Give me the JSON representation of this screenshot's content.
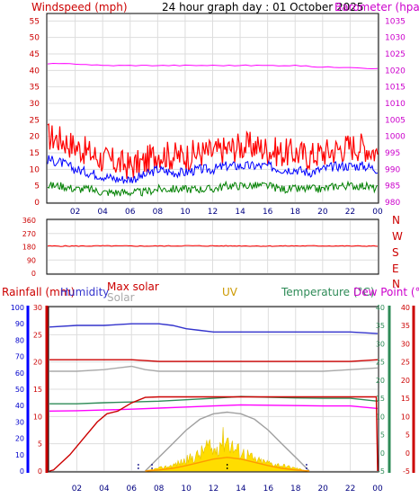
{
  "page": {
    "title": "24 hour graph day : 01 October 2025"
  },
  "chart_data": [
    {
      "type": "line",
      "title": "24 hour graph day : 01 October 2025",
      "left_label": "Windspeed (mph)",
      "right_label": "Barometer (hpa)",
      "x_ticks": [
        "02",
        "04",
        "06",
        "08",
        "10",
        "12",
        "14",
        "16",
        "18",
        "20",
        "22",
        "00"
      ],
      "left_ticks": [
        0,
        5,
        10,
        15,
        20,
        25,
        30,
        35,
        40,
        45,
        50,
        55
      ],
      "right_ticks": [
        980,
        985,
        990,
        995,
        1000,
        1005,
        1010,
        1015,
        1020,
        1025,
        1030,
        1035
      ],
      "ylim_left": [
        0,
        57
      ],
      "ylim_right": [
        980,
        1037
      ],
      "grid": true,
      "series": [
        {
          "color": "#ff0000",
          "axis": "left",
          "x": [
            0,
            1,
            2,
            3,
            4,
            5,
            6,
            7,
            8,
            9,
            10,
            11,
            12,
            13,
            14,
            15,
            16,
            17,
            18,
            19,
            20,
            21,
            22,
            23,
            24
          ],
          "values": [
            20,
            19,
            17,
            15,
            13,
            12,
            11,
            12,
            15,
            14,
            14,
            15,
            15,
            16,
            17,
            17,
            16,
            15,
            15,
            14,
            15,
            16,
            17,
            17,
            15
          ]
        },
        {
          "color": "#0000ff",
          "axis": "left",
          "x": [
            0,
            1,
            2,
            3,
            4,
            5,
            6,
            7,
            8,
            9,
            10,
            11,
            12,
            13,
            14,
            15,
            16,
            17,
            18,
            19,
            20,
            21,
            22,
            23,
            24
          ],
          "values": [
            13,
            12,
            10,
            9,
            8,
            7,
            7,
            8,
            10,
            9,
            9,
            10,
            10,
            11,
            11,
            11,
            11,
            10,
            10,
            9,
            10,
            11,
            11,
            11,
            10
          ]
        },
        {
          "color": "#008000",
          "axis": "left",
          "x": [
            0,
            1,
            2,
            3,
            4,
            5,
            6,
            7,
            8,
            9,
            10,
            11,
            12,
            13,
            14,
            15,
            16,
            17,
            18,
            19,
            20,
            21,
            22,
            23,
            24
          ],
          "values": [
            5,
            5,
            4,
            4,
            3,
            3,
            3,
            3,
            4,
            4,
            4,
            4,
            4,
            5,
            5,
            5,
            5,
            4,
            4,
            4,
            4,
            5,
            5,
            5,
            4
          ]
        },
        {
          "color": "#ff00ff",
          "axis": "right",
          "x": [
            0,
            2,
            4,
            6,
            8,
            10,
            12,
            14,
            16,
            18,
            20,
            22,
            24
          ],
          "values": [
            1022,
            1022,
            1021.5,
            1021.5,
            1021.5,
            1021.5,
            1021.5,
            1021.5,
            1021.5,
            1021.5,
            1021,
            1021,
            1020.5
          ]
        }
      ]
    },
    {
      "type": "line",
      "left_ticks": [
        0,
        90,
        180,
        270,
        360
      ],
      "right_ticks": [
        "N",
        "W",
        "S",
        "E",
        "N"
      ],
      "x_ticks": [],
      "ylim": [
        0,
        360
      ],
      "grid": true,
      "series": [
        {
          "color": "#ff0000",
          "x": [
            0,
            2,
            4,
            6,
            8,
            10,
            12,
            14,
            16,
            18,
            20,
            22,
            24
          ],
          "values": [
            185,
            185,
            186,
            185,
            185,
            187,
            186,
            186,
            185,
            186,
            186,
            185,
            185
          ]
        }
      ]
    },
    {
      "type": "line",
      "header_labels": {
        "rainfall": "Rainfall (mm)",
        "humidity": "Humidity",
        "max_solar": "Max solar",
        "solar": "Solar",
        "uv": "UV",
        "temperature": "Temperature (°C)",
        "dew_point": "Dew Point (°C)"
      },
      "x_ticks": [
        "02",
        "04",
        "06",
        "08",
        "10",
        "12",
        "14",
        "16",
        "18",
        "20",
        "22",
        "00"
      ],
      "axes": {
        "humidity": {
          "ticks": [
            0,
            10,
            20,
            30,
            40,
            50,
            60,
            70,
            80,
            90,
            100
          ],
          "range": [
            0,
            100
          ]
        },
        "rainfall": {
          "ticks": [
            0,
            5,
            10,
            15,
            20,
            25,
            30
          ],
          "range": [
            0,
            30
          ]
        },
        "temperature": {
          "ticks": [
            -5,
            0,
            5,
            10,
            15,
            20,
            25,
            30,
            35,
            40
          ],
          "range": [
            -5,
            40
          ]
        },
        "dew_point": {
          "ticks": [
            -5,
            0,
            5,
            10,
            15,
            20,
            25,
            30,
            35,
            40
          ],
          "range": [
            -5,
            40
          ]
        }
      },
      "grid": true,
      "series": [
        {
          "color": "#3333cc",
          "axis": "humidity",
          "x": [
            0,
            2,
            4,
            6,
            8,
            9,
            10,
            11,
            12,
            14,
            16,
            18,
            20,
            22,
            24
          ],
          "values": [
            88,
            89,
            89,
            90,
            90,
            89,
            87,
            86,
            85,
            85,
            85,
            85,
            85,
            85,
            84
          ]
        },
        {
          "color": "#cc0000",
          "axis": "humidity",
          "x": [
            0,
            2,
            4,
            6,
            8,
            10,
            12,
            14,
            16,
            18,
            20,
            22,
            24
          ],
          "values": [
            68,
            68,
            68,
            68,
            67,
            67,
            67,
            67,
            67,
            67,
            67,
            67,
            68
          ]
        },
        {
          "color": "#aaaaaa",
          "axis": "humidity",
          "x": [
            0,
            2,
            4,
            6,
            7,
            8,
            10,
            12,
            14,
            16,
            18,
            20,
            22,
            24
          ],
          "values": [
            61,
            61,
            62,
            64,
            62,
            61,
            61,
            61,
            61,
            61,
            61,
            61,
            62,
            63
          ]
        },
        {
          "color": "#2e8b57",
          "axis": "temperature",
          "x": [
            0,
            2,
            4,
            6,
            8,
            10,
            12,
            14,
            16,
            18,
            20,
            22,
            24
          ],
          "values": [
            13.5,
            13.5,
            13.8,
            14,
            14.2,
            14.6,
            15,
            15.5,
            15.3,
            15.1,
            15,
            15,
            14.2
          ]
        },
        {
          "color": "#ff00ff",
          "axis": "dew_point",
          "x": [
            0,
            2,
            4,
            6,
            8,
            10,
            12,
            14,
            16,
            18,
            20,
            22,
            24
          ],
          "values": [
            11.5,
            11.6,
            11.8,
            12,
            12.3,
            12.6,
            12.9,
            13.2,
            13.1,
            13,
            12.9,
            12.9,
            12.2
          ]
        },
        {
          "color": "#cc0000",
          "axis": "rainfall",
          "name_key": "rainfall",
          "x": [
            0,
            0.3,
            1.5,
            2.5,
            3.5,
            4.2,
            5.0,
            6.0,
            7.0,
            8.0,
            10,
            12,
            14,
            16,
            18,
            20,
            22,
            23.9,
            24
          ],
          "values": [
            0,
            0.2,
            3,
            6,
            9,
            10.5,
            11,
            12.5,
            13.5,
            13.6,
            13.6,
            13.6,
            13.6,
            13.6,
            13.6,
            13.6,
            13.6,
            13.6,
            0
          ]
        },
        {
          "color": "#a0a0a0",
          "axis": "rainfall",
          "name_key": "max_solar",
          "x": [
            7,
            8,
            9,
            10,
            11,
            12,
            13,
            14,
            15,
            16,
            17,
            18,
            19
          ],
          "values": [
            0,
            2.5,
            5,
            7.5,
            9.5,
            10.5,
            10.8,
            10.5,
            9.5,
            7.5,
            5,
            2.5,
            0
          ]
        },
        {
          "color": "#ffdd00",
          "axis": "rainfall",
          "type": "area",
          "name_key": "solar",
          "x": [
            7,
            8,
            9,
            10,
            11,
            11.5,
            12,
            12.5,
            13,
            13.5,
            14,
            14.5,
            15,
            16,
            17,
            18,
            19
          ],
          "values": [
            0,
            0.5,
            1,
            2,
            3,
            4.5,
            3.5,
            5.5,
            6,
            4,
            3.5,
            3,
            2,
            1.5,
            1,
            0.5,
            0
          ]
        },
        {
          "color": "#ff9900",
          "axis": "rainfall",
          "name_key": "uv",
          "x": [
            7,
            8,
            9,
            10,
            11,
            12,
            13,
            14,
            15,
            16,
            17,
            18,
            19
          ],
          "values": [
            0,
            0.2,
            0.5,
            1,
            1.6,
            2.2,
            2.5,
            2.2,
            1.6,
            1,
            0.5,
            0.2,
            0
          ]
        }
      ],
      "markers": [
        {
          "color": "#000080",
          "x": [
            6.5,
            7.5,
            18.8
          ]
        },
        {
          "color": "#000000",
          "x": [
            13
          ]
        }
      ]
    }
  ]
}
